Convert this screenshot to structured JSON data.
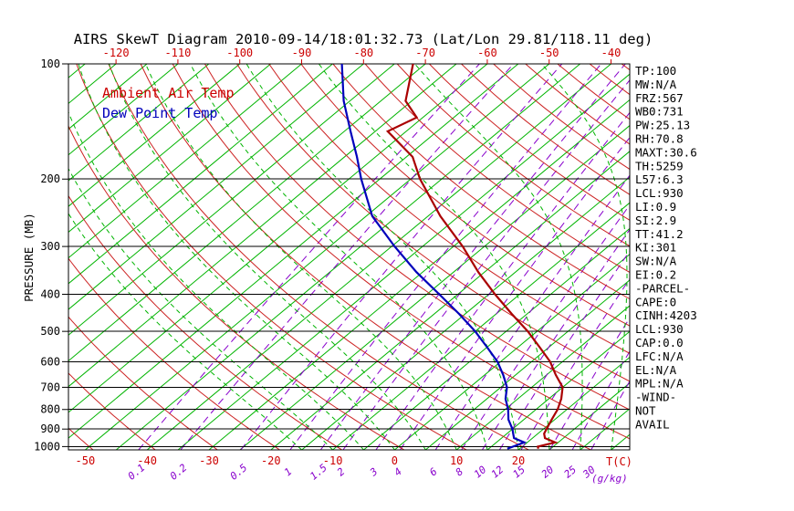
{
  "title": "AIRS SkewT Diagram 2010-09-14/18:01:32.73 (Lat/Lon 29.81/118.11 deg)",
  "legend": {
    "ambient": "Ambient Air Temp",
    "dew": "Dew Point Temp"
  },
  "axes": {
    "ylabel": "PRESSURE (MB)",
    "xlabel": "T(C)",
    "x2label": "(g/kg)"
  },
  "colors": {
    "isotherm_green": "#00B400",
    "adiabat_red": "#CC2222",
    "mixing_purple": "#8800CC",
    "temp_curve_red": "#AA0000",
    "dewpoint_blue": "#0000BB",
    "axis_label_red": "#CC0000",
    "text_black": "#000000"
  },
  "stats_panel": [
    "TP:100",
    "MW:N/A",
    "FRZ:567",
    "WB0:731",
    "PW:25.13",
    "RH:70.8",
    "MAXT:30.6",
    "TH:5259",
    "L57:6.3",
    "LCL:930",
    "LI:0.9",
    "SI:2.9",
    "TT:41.2",
    "KI:301",
    "SW:N/A",
    "EI:0.2",
    "-PARCEL-",
    "CAPE:0",
    "CINH:4203",
    "LCL:930",
    "CAP:0.0",
    "LFC:N/A",
    "EL:N/A",
    "MPL:N/A",
    "-WIND-",
    "NOT",
    "AVAIL"
  ],
  "chart_data": {
    "type": "skewt-log-p sounding",
    "pressure_axis_range": [
      100,
      1020
    ],
    "pressure_ticks": [
      100,
      200,
      300,
      400,
      500,
      600,
      700,
      800,
      900,
      1000
    ],
    "top_temperature_ticks": [
      -120,
      -110,
      -100,
      -90,
      -80,
      -70,
      -60,
      -50,
      -40
    ],
    "bottom_temperature_ticks": [
      -50,
      -40,
      -30,
      -20,
      -10,
      0,
      10,
      20
    ],
    "isotherms": {
      "min": -130,
      "max": 45,
      "step": 5
    },
    "dry_adiabats_theta_c": {
      "min": -50,
      "max": 190,
      "step": 10
    },
    "moist_adiabats_thetaw_c": {
      "min": -15,
      "max": 70,
      "step": 5
    },
    "mixing_ratio_g_kg": [
      0.1,
      0.2,
      0.5,
      1,
      1.5,
      2,
      3,
      4,
      6,
      8,
      10,
      12,
      15,
      20,
      25,
      30
    ],
    "temperature_profile": [
      [
        1013,
        23
      ],
      [
        1000,
        22.5
      ],
      [
        975,
        24.5
      ],
      [
        950,
        22
      ],
      [
        925,
        21
      ],
      [
        900,
        20.5
      ],
      [
        850,
        19.5
      ],
      [
        800,
        18.5
      ],
      [
        750,
        17
      ],
      [
        700,
        15
      ],
      [
        650,
        11.5
      ],
      [
        600,
        8
      ],
      [
        550,
        3.5
      ],
      [
        500,
        -1.5
      ],
      [
        450,
        -7.5
      ],
      [
        400,
        -14
      ],
      [
        350,
        -21
      ],
      [
        300,
        -28.5
      ],
      [
        250,
        -38
      ],
      [
        200,
        -48.5
      ],
      [
        175,
        -54
      ],
      [
        150,
        -63
      ],
      [
        138,
        -61
      ],
      [
        125,
        -66
      ],
      [
        100,
        -72
      ]
    ],
    "dewpoint_profile": [
      [
        1013,
        18
      ],
      [
        1000,
        18.5
      ],
      [
        975,
        19.5
      ],
      [
        950,
        17
      ],
      [
        925,
        16
      ],
      [
        900,
        15
      ],
      [
        850,
        12.5
      ],
      [
        800,
        10.5
      ],
      [
        750,
        8
      ],
      [
        700,
        6
      ],
      [
        650,
        3
      ],
      [
        600,
        -0.5
      ],
      [
        550,
        -5
      ],
      [
        500,
        -10
      ],
      [
        450,
        -16
      ],
      [
        400,
        -23
      ],
      [
        350,
        -31
      ],
      [
        300,
        -39.5
      ],
      [
        250,
        -49
      ],
      [
        200,
        -58
      ],
      [
        175,
        -63
      ],
      [
        150,
        -69
      ],
      [
        125,
        -76
      ],
      [
        100,
        -83.5
      ]
    ]
  }
}
